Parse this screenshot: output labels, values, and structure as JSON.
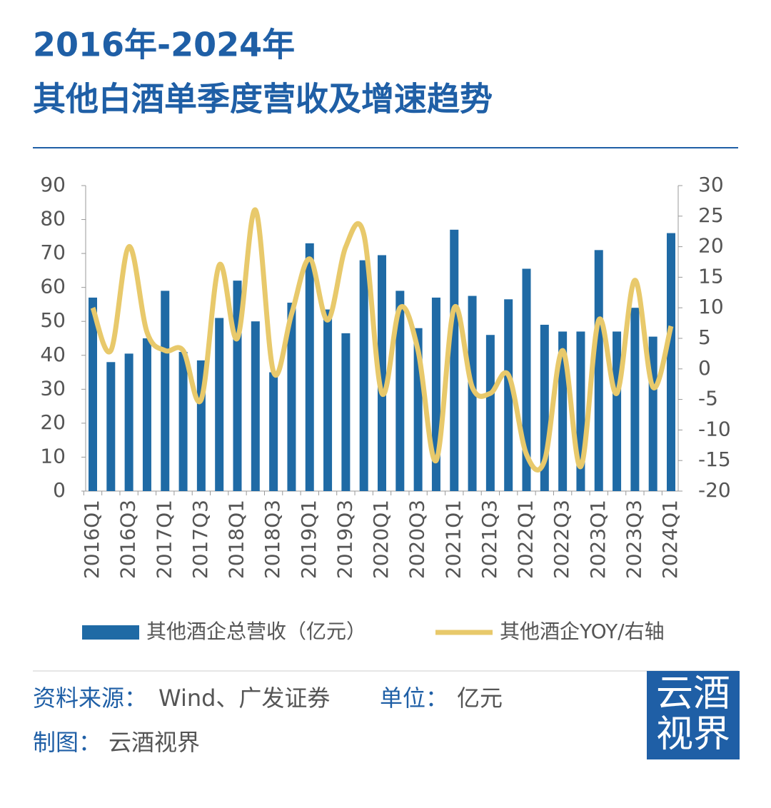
{
  "header": {
    "title": [
      "2016年-2024年",
      "其他白酒单季度营收及增速趋势"
    ]
  },
  "chart_data": {
    "type": "bar_line",
    "categories": [
      "2016Q1",
      null,
      "2016Q3",
      null,
      "2017Q1",
      null,
      "2017Q3",
      null,
      "2018Q1",
      null,
      "2018Q3",
      null,
      "2019Q1",
      null,
      "2019Q3",
      null,
      "2020Q1",
      null,
      "2020Q3",
      null,
      "2021Q1",
      null,
      "2021Q3",
      null,
      "2022Q1",
      null,
      "2022Q3",
      null,
      "2023Q1",
      null,
      "2023Q3",
      null,
      "2024Q1"
    ],
    "series": [
      {
        "name": "其他酒企总营收（亿元）",
        "type": "bar",
        "color": "#1f6aa5",
        "values": [
          57,
          38,
          40.5,
          45,
          59,
          41,
          38.5,
          51,
          62,
          50,
          35,
          55.5,
          73,
          53.5,
          46.5,
          68,
          69.5,
          59,
          48,
          57,
          77,
          57.5,
          46,
          56.5,
          65.5,
          49,
          47,
          47,
          71,
          47,
          54,
          45.5,
          76
        ]
      },
      {
        "name": "其他酒企YOY/右轴",
        "type": "line",
        "axis": "y2",
        "color": "#e8c96b",
        "values": [
          10,
          3,
          20,
          6,
          3,
          3,
          -5,
          17,
          5,
          26,
          -0.5,
          9,
          18,
          8,
          20,
          22,
          -4,
          10,
          3,
          -15,
          10,
          -3,
          -4,
          -1,
          -14,
          -15,
          3,
          -16,
          8,
          -4,
          14.5,
          -3,
          7
        ]
      }
    ],
    "ylim": [
      0,
      90
    ],
    "yticks": [
      0,
      10,
      20,
      30,
      40,
      50,
      60,
      70,
      80,
      90
    ],
    "y2lim": [
      -20,
      30
    ],
    "y2ticks": [
      -20,
      -15,
      -10,
      -5,
      0,
      5,
      10,
      15,
      20,
      25,
      30
    ]
  },
  "footer": {
    "source_label": "资料来源：",
    "source": "Wind、广发证券",
    "unit_label": "单位：",
    "unit": "亿元",
    "maker_label": "制图：",
    "maker": "云酒视界",
    "logo": [
      "云酒",
      "视界"
    ]
  }
}
